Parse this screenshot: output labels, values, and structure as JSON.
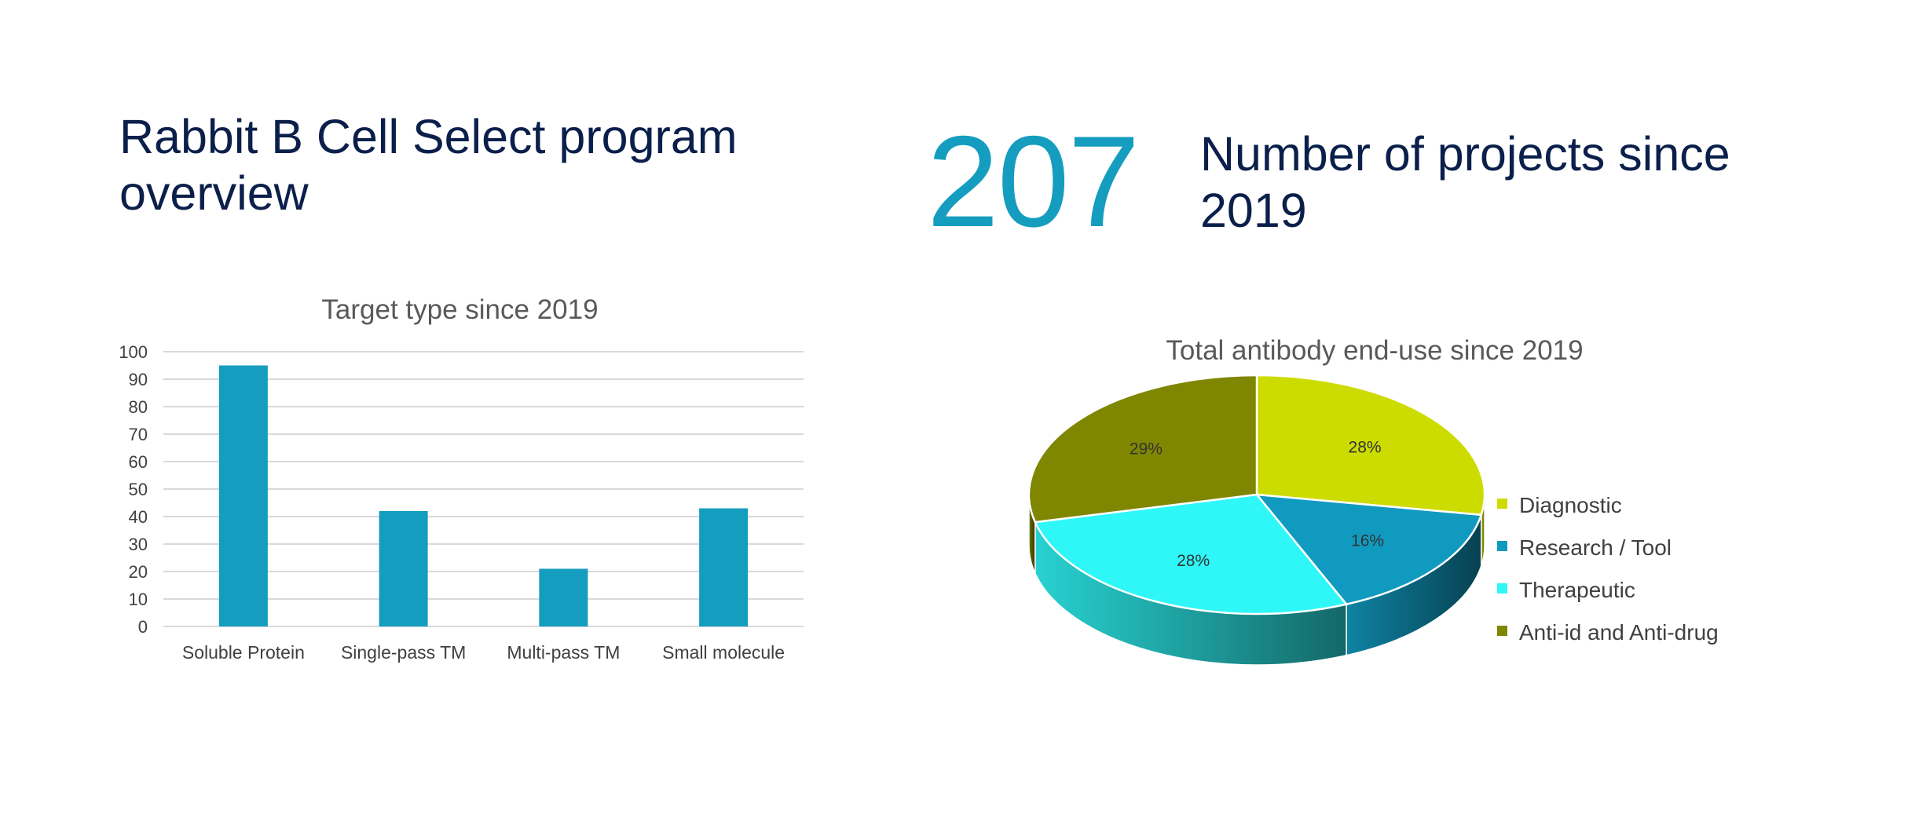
{
  "slide": {
    "title": "Rabbit B Cell Select program overview",
    "stat_number": "207",
    "stat_caption": "Number of projects since 2019"
  },
  "colors": {
    "title": "#0b1f4b",
    "accent": "#159dbf",
    "bar": "#159dbf",
    "diagnostic": "#cddc00",
    "research": "#119ac0",
    "therapeutic": "#2ff7f7",
    "anti_id": "#7f8600"
  },
  "chart_data": [
    {
      "type": "bar",
      "title": "Target type since 2019",
      "categories": [
        "Soluble Protein",
        "Single-pass TM",
        "Multi-pass TM",
        "Small molecule"
      ],
      "values": [
        95,
        42,
        21,
        43
      ],
      "xlabel": "",
      "ylabel": "",
      "ylim": [
        0,
        100
      ],
      "yticks": [
        0,
        10,
        20,
        30,
        40,
        50,
        60,
        70,
        80,
        90,
        100
      ],
      "grid": true
    },
    {
      "type": "pie",
      "title": "Total antibody end-use since 2019",
      "style": "3d",
      "legend_position": "right",
      "slices": [
        {
          "label": "Diagnostic",
          "value": 28,
          "display": "28%",
          "color": "#cddc00"
        },
        {
          "label": "Research / Tool",
          "value": 16,
          "display": "16%",
          "color": "#119ac0"
        },
        {
          "label": "Therapeutic",
          "value": 28,
          "display": "28%",
          "color": "#2ff7f7"
        },
        {
          "label": "Anti-id and Anti-drug",
          "value": 29,
          "display": "29%",
          "color": "#7f8600"
        }
      ]
    }
  ]
}
